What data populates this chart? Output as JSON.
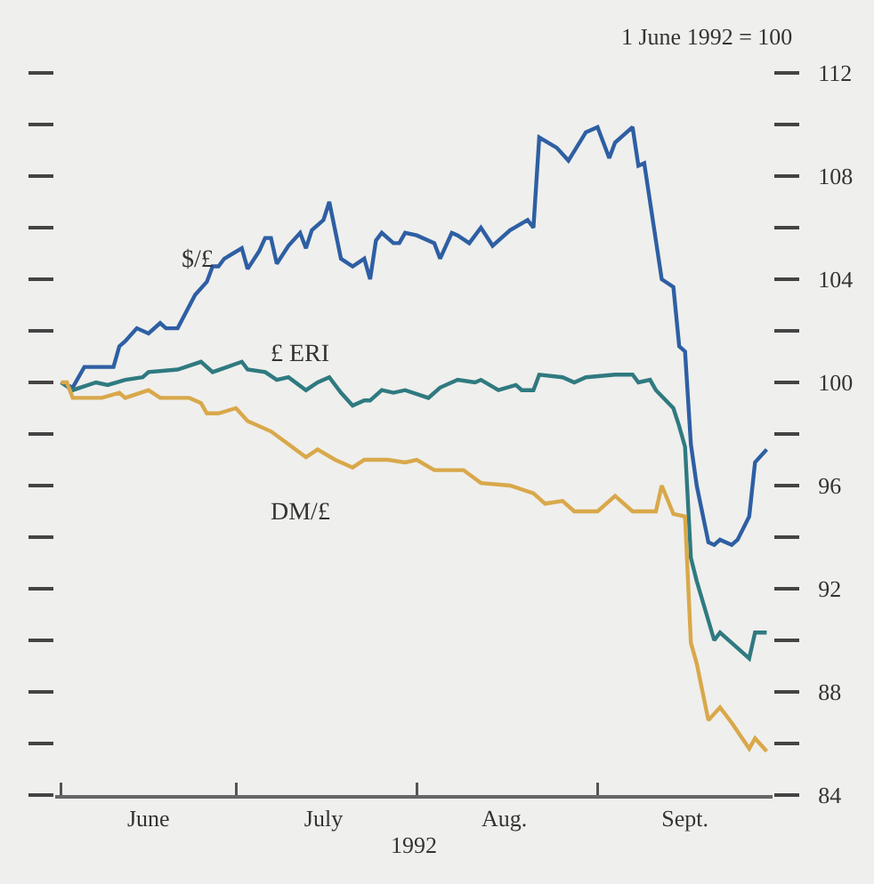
{
  "chart_data": {
    "type": "line",
    "xlabel": "1992",
    "annotations": [
      "1 June 1992 = 100"
    ],
    "xlim": [
      "1992-05-31",
      "1992-10-01"
    ],
    "xticks": [
      {
        "value": "1992-06-01",
        "label": null
      },
      {
        "value": "1992-06-16",
        "label": "June"
      },
      {
        "value": "1992-07-01",
        "label": null
      },
      {
        "value": "1992-07-16",
        "label": "July"
      },
      {
        "value": "1992-08-01",
        "label": null
      },
      {
        "value": "1992-08-16",
        "label": "Aug."
      },
      {
        "value": "1992-09-01",
        "label": null
      },
      {
        "value": "1992-09-16",
        "label": "Sept."
      }
    ],
    "ylim": [
      84,
      112
    ],
    "yticks": [
      84,
      {
        "value": 86,
        "label": null
      },
      88,
      {
        "value": 90,
        "label": null
      },
      92,
      {
        "value": 94,
        "label": null
      },
      96,
      {
        "value": 98,
        "label": null
      },
      100,
      {
        "value": 102,
        "label": null
      },
      104,
      {
        "value": 106,
        "label": null
      },
      108,
      {
        "value": 110,
        "label": null
      },
      112
    ],
    "grid": false,
    "legend": false,
    "line_style": "solid",
    "marker": "none",
    "series": [
      {
        "name": "$/£",
        "color": "#2e5fa3",
        "x": [
          "1992-06-01",
          "1992-06-03",
          "1992-06-05",
          "1992-06-10",
          "1992-06-11",
          "1992-06-12",
          "1992-06-14",
          "1992-06-16",
          "1992-06-18",
          "1992-06-19",
          "1992-06-21",
          "1992-06-24",
          "1992-06-26",
          "1992-06-27",
          "1992-06-28",
          "1992-06-29",
          "1992-07-02",
          "1992-07-03",
          "1992-07-05",
          "1992-07-06",
          "1992-07-07",
          "1992-07-08",
          "1992-07-10",
          "1992-07-12",
          "1992-07-13",
          "1992-07-14",
          "1992-07-16",
          "1992-07-17",
          "1992-07-19",
          "1992-07-21",
          "1992-07-23",
          "1992-07-24",
          "1992-07-25",
          "1992-07-26",
          "1992-07-28",
          "1992-07-29",
          "1992-07-30",
          "1992-08-01",
          "1992-08-04",
          "1992-08-05",
          "1992-08-07",
          "1992-08-08",
          "1992-08-10",
          "1992-08-12",
          "1992-08-14",
          "1992-08-17",
          "1992-08-20",
          "1992-08-21",
          "1992-08-22",
          "1992-08-25",
          "1992-08-27",
          "1992-08-30",
          "1992-09-01",
          "1992-09-03",
          "1992-09-04",
          "1992-09-07",
          "1992-09-08",
          "1992-09-09",
          "1992-09-12",
          "1992-09-14",
          "1992-09-15",
          "1992-09-16",
          "1992-09-17",
          "1992-09-18",
          "1992-09-20",
          "1992-09-21",
          "1992-09-22",
          "1992-09-24",
          "1992-09-25",
          "1992-09-27",
          "1992-09-28",
          "1992-09-30"
        ],
        "values": [
          100,
          99.8,
          100.6,
          100.6,
          101.4,
          101.6,
          102.1,
          101.9,
          102.3,
          102.1,
          102.1,
          103.4,
          103.9,
          104.5,
          104.5,
          104.8,
          105.2,
          104.4,
          105.1,
          105.6,
          105.6,
          104.6,
          105.3,
          105.8,
          105.2,
          105.9,
          106.3,
          107.0,
          104.8,
          104.5,
          104.8,
          104.0,
          105.5,
          105.8,
          105.4,
          105.4,
          105.8,
          105.7,
          105.4,
          104.8,
          105.8,
          105.7,
          105.4,
          106.0,
          105.3,
          105.9,
          106.3,
          106.0,
          109.5,
          109.1,
          108.6,
          109.7,
          109.9,
          108.7,
          109.3,
          109.9,
          108.4,
          108.5,
          104.0,
          103.7,
          101.4,
          101.2,
          97.6,
          96.0,
          93.8,
          93.7,
          93.9,
          93.7,
          93.9,
          94.8,
          96.9,
          97.4
        ]
      },
      {
        "name": "£ ERI",
        "color": "#2f7a80",
        "x": [
          "1992-06-01",
          "1992-06-03",
          "1992-06-07",
          "1992-06-09",
          "1992-06-12",
          "1992-06-15",
          "1992-06-16",
          "1992-06-21",
          "1992-06-25",
          "1992-06-27",
          "1992-07-02",
          "1992-07-03",
          "1992-07-06",
          "1992-07-08",
          "1992-07-10",
          "1992-07-13",
          "1992-07-15",
          "1992-07-17",
          "1992-07-19",
          "1992-07-21",
          "1992-07-23",
          "1992-07-24",
          "1992-07-26",
          "1992-07-28",
          "1992-07-30",
          "1992-08-03",
          "1992-08-05",
          "1992-08-08",
          "1992-08-11",
          "1992-08-12",
          "1992-08-15",
          "1992-08-18",
          "1992-08-19",
          "1992-08-21",
          "1992-08-22",
          "1992-08-26",
          "1992-08-28",
          "1992-08-30",
          "1992-09-04",
          "1992-09-07",
          "1992-09-08",
          "1992-09-10",
          "1992-09-11",
          "1992-09-14",
          "1992-09-15",
          "1992-09-16",
          "1992-09-17",
          "1992-09-18",
          "1992-09-21",
          "1992-09-22",
          "1992-09-24",
          "1992-09-27",
          "1992-09-28",
          "1992-09-30"
        ],
        "values": [
          100,
          99.7,
          100.0,
          99.9,
          100.1,
          100.2,
          100.4,
          100.5,
          100.8,
          100.4,
          100.8,
          100.5,
          100.4,
          100.1,
          100.2,
          99.7,
          100.0,
          100.2,
          99.6,
          99.1,
          99.3,
          99.3,
          99.7,
          99.6,
          99.7,
          99.4,
          99.8,
          100.1,
          100.0,
          100.1,
          99.7,
          99.9,
          99.7,
          99.7,
          100.3,
          100.2,
          100.0,
          100.2,
          100.3,
          100.3,
          100.0,
          100.1,
          99.7,
          99.0,
          98.3,
          97.5,
          93.2,
          92.3,
          90.0,
          90.3,
          89.9,
          89.3,
          90.3,
          90.3
        ]
      },
      {
        "name": "DM/£",
        "color": "#d9a84a",
        "x": [
          "1992-06-01",
          "1992-06-02",
          "1992-06-03",
          "1992-06-08",
          "1992-06-11",
          "1992-06-12",
          "1992-06-16",
          "1992-06-18",
          "1992-06-23",
          "1992-06-25",
          "1992-06-26",
          "1992-06-28",
          "1992-07-01",
          "1992-07-03",
          "1992-07-07",
          "1992-07-10",
          "1992-07-13",
          "1992-07-15",
          "1992-07-18",
          "1992-07-21",
          "1992-07-23",
          "1992-07-27",
          "1992-07-30",
          "1992-08-01",
          "1992-08-04",
          "1992-08-09",
          "1992-08-12",
          "1992-08-17",
          "1992-08-21",
          "1992-08-23",
          "1992-08-26",
          "1992-08-28",
          "1992-09-01",
          "1992-09-04",
          "1992-09-07",
          "1992-09-11",
          "1992-09-12",
          "1992-09-14",
          "1992-09-16",
          "1992-09-17",
          "1992-09-18",
          "1992-09-20",
          "1992-09-22",
          "1992-09-24",
          "1992-09-27",
          "1992-09-28",
          "1992-09-30"
        ],
        "values": [
          100,
          100.0,
          99.4,
          99.4,
          99.6,
          99.4,
          99.7,
          99.4,
          99.4,
          99.2,
          98.8,
          98.8,
          99.0,
          98.5,
          98.1,
          97.6,
          97.1,
          97.4,
          97.0,
          96.7,
          97.0,
          97.0,
          96.9,
          97.0,
          96.6,
          96.6,
          96.1,
          96.0,
          95.7,
          95.3,
          95.4,
          95.0,
          95.0,
          95.6,
          95.0,
          95.0,
          96.0,
          94.9,
          94.8,
          89.9,
          89.1,
          86.9,
          87.4,
          86.8,
          85.8,
          86.2,
          85.7
        ]
      }
    ]
  }
}
